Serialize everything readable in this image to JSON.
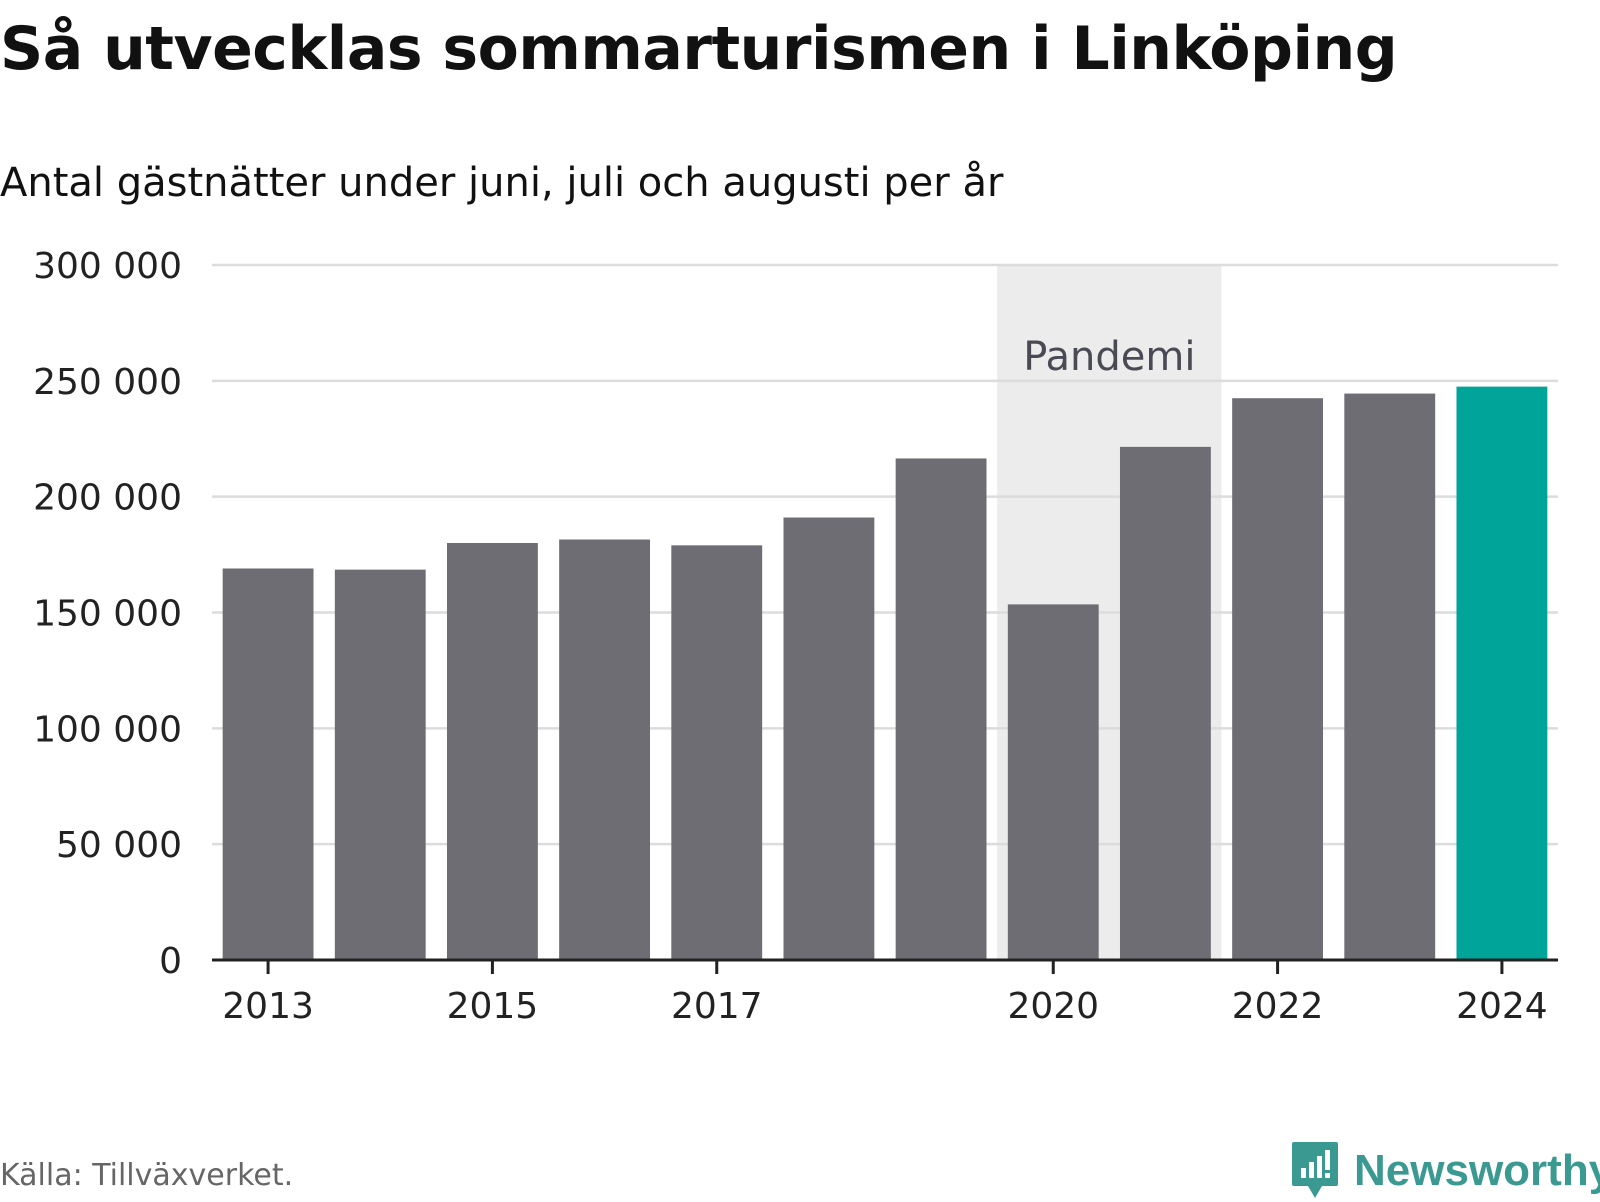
{
  "title": "Så utvecklas sommarturismen i Linköping",
  "subtitle": "Antal gästnätter under juni, juli och augusti per år",
  "source": "Källa: Tillväxverket.",
  "brand": {
    "name": "Newsworthy",
    "color": "#3a9a92"
  },
  "chart_data": {
    "type": "bar",
    "categories": [
      "2013",
      "2014",
      "2015",
      "2016",
      "2017",
      "2018",
      "2019",
      "2020",
      "2021",
      "2022",
      "2023",
      "2024"
    ],
    "values": [
      169000,
      168500,
      180000,
      181500,
      179000,
      191000,
      216500,
      153500,
      221500,
      242500,
      244500,
      247500
    ],
    "x_tick_labels": [
      "2013",
      "2015",
      "2017",
      "2020",
      "2022",
      "2024"
    ],
    "y_ticks": [
      0,
      50000,
      100000,
      150000,
      200000,
      250000,
      300000
    ],
    "y_tick_labels": [
      "0",
      "50 000",
      "100 000",
      "150 000",
      "200 000",
      "250 000",
      "300 000"
    ],
    "ylim": [
      0,
      300000
    ],
    "grid": true,
    "bar_color": "#6e6d73",
    "highlight": {
      "category": "2024",
      "color": "#00a499"
    },
    "annotation": {
      "label": "Pandemi",
      "from": "2020",
      "to": "2021",
      "color": "#ececec"
    }
  }
}
